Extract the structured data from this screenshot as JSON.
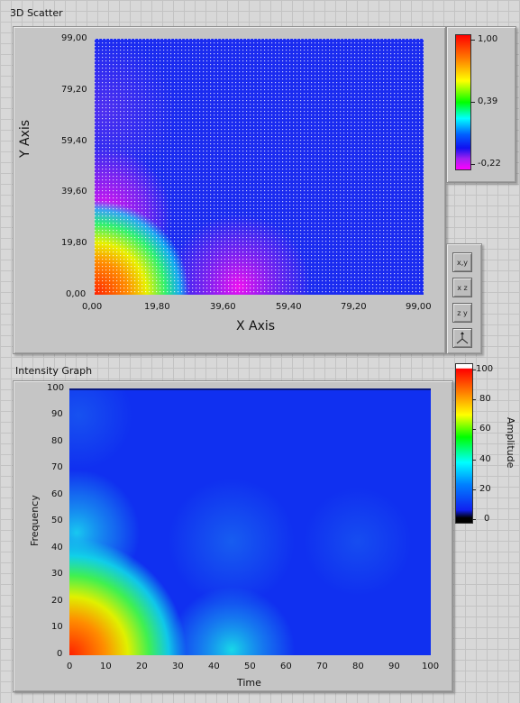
{
  "scatter": {
    "title": "3D Scatter",
    "x_axis_label": "X Axis",
    "y_axis_label": "Y Axis",
    "x_ticks": [
      "0,00",
      "19,80",
      "39,60",
      "59,40",
      "79,20",
      "99,00"
    ],
    "y_ticks": [
      "99,00",
      "79,20",
      "59,40",
      "39,60",
      "19,80",
      "0,00"
    ],
    "colorscale_ticks": [
      "1,00",
      "0,39",
      "-0,22"
    ],
    "view_buttons": [
      {
        "icon": "xy-plane-icon",
        "label": "x,y"
      },
      {
        "icon": "xz-plane-icon",
        "label": "x z"
      },
      {
        "icon": "yz-plane-icon",
        "label": "z y"
      },
      {
        "icon": "3d-view-icon",
        "label": "3D"
      }
    ]
  },
  "intensity": {
    "title": "Intensity Graph",
    "x_axis_label": "Time",
    "y_axis_label": "Frequency",
    "x_ticks": [
      "0",
      "10",
      "20",
      "30",
      "40",
      "50",
      "60",
      "70",
      "80",
      "90",
      "100"
    ],
    "y_ticks": [
      "100",
      "90",
      "80",
      "70",
      "60",
      "50",
      "40",
      "30",
      "20",
      "10",
      "0"
    ],
    "colorscale_label": "Amplitude",
    "colorscale_ticks": [
      "100",
      "80",
      "60",
      "40",
      "20",
      "0"
    ]
  },
  "colors": {
    "panel": "#c5c5c5",
    "plot_blue": "#1a2bf0",
    "hot_red": "#ff2000"
  }
}
